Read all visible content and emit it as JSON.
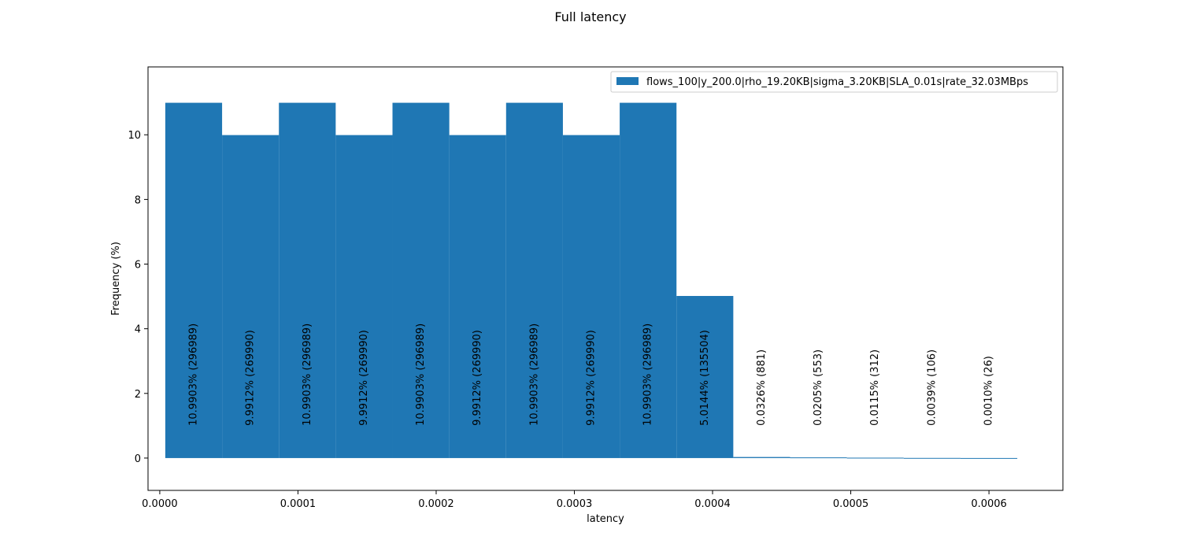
{
  "chart_data": {
    "type": "bar",
    "title": "Full latency",
    "xlabel": "latency",
    "ylabel": "Frequency (%)",
    "xlim": [
      -8.5e-06,
      0.0006535
    ],
    "ylim": [
      -1.0,
      12.1
    ],
    "xticks": [
      0.0,
      0.0001,
      0.0002,
      0.0003,
      0.0004,
      0.0005,
      0.0006
    ],
    "xtick_labels": [
      "0.0000",
      "0.0001",
      "0.0002",
      "0.0003",
      "0.0004",
      "0.0005",
      "0.0006"
    ],
    "yticks": [
      0,
      2,
      4,
      6,
      8,
      10
    ],
    "ytick_labels": [
      "0",
      "2",
      "4",
      "6",
      "8",
      "10"
    ],
    "bin_edges": [
      4e-06,
      4.51e-05,
      8.62e-05,
      0.0001273,
      0.0001684,
      0.0002095,
      0.0002506,
      0.0002917,
      0.0003328,
      0.0003739,
      0.000415,
      0.0004561,
      0.0004972,
      0.0005383,
      0.0005794,
      0.0006205
    ],
    "values": [
      10.9903,
      9.9912,
      10.9903,
      9.9912,
      10.9903,
      9.9912,
      10.9903,
      9.9912,
      10.9903,
      5.0144,
      0.0326,
      0.0205,
      0.0115,
      0.0039,
      0.001
    ],
    "bar_labels": [
      "10.9903% (296989)",
      "9.9912% (269990)",
      "10.9903% (296989)",
      "9.9912% (269990)",
      "10.9903% (296989)",
      "9.9912% (269990)",
      "10.9903% (296989)",
      "9.9912% (269990)",
      "10.9903% (296989)",
      "5.0144% (135504)",
      "0.0326% (881)",
      "0.0205% (553)",
      "0.0115% (312)",
      "0.0039% (106)",
      "0.0010% (26)"
    ],
    "series_name": "flows_100|y_200.0|rho_19.20KB|sigma_3.20KB|SLA_0.01s|rate_32.03MBps",
    "legend_position": "upper right",
    "bar_color": "#1f77b4",
    "grid": false
  }
}
